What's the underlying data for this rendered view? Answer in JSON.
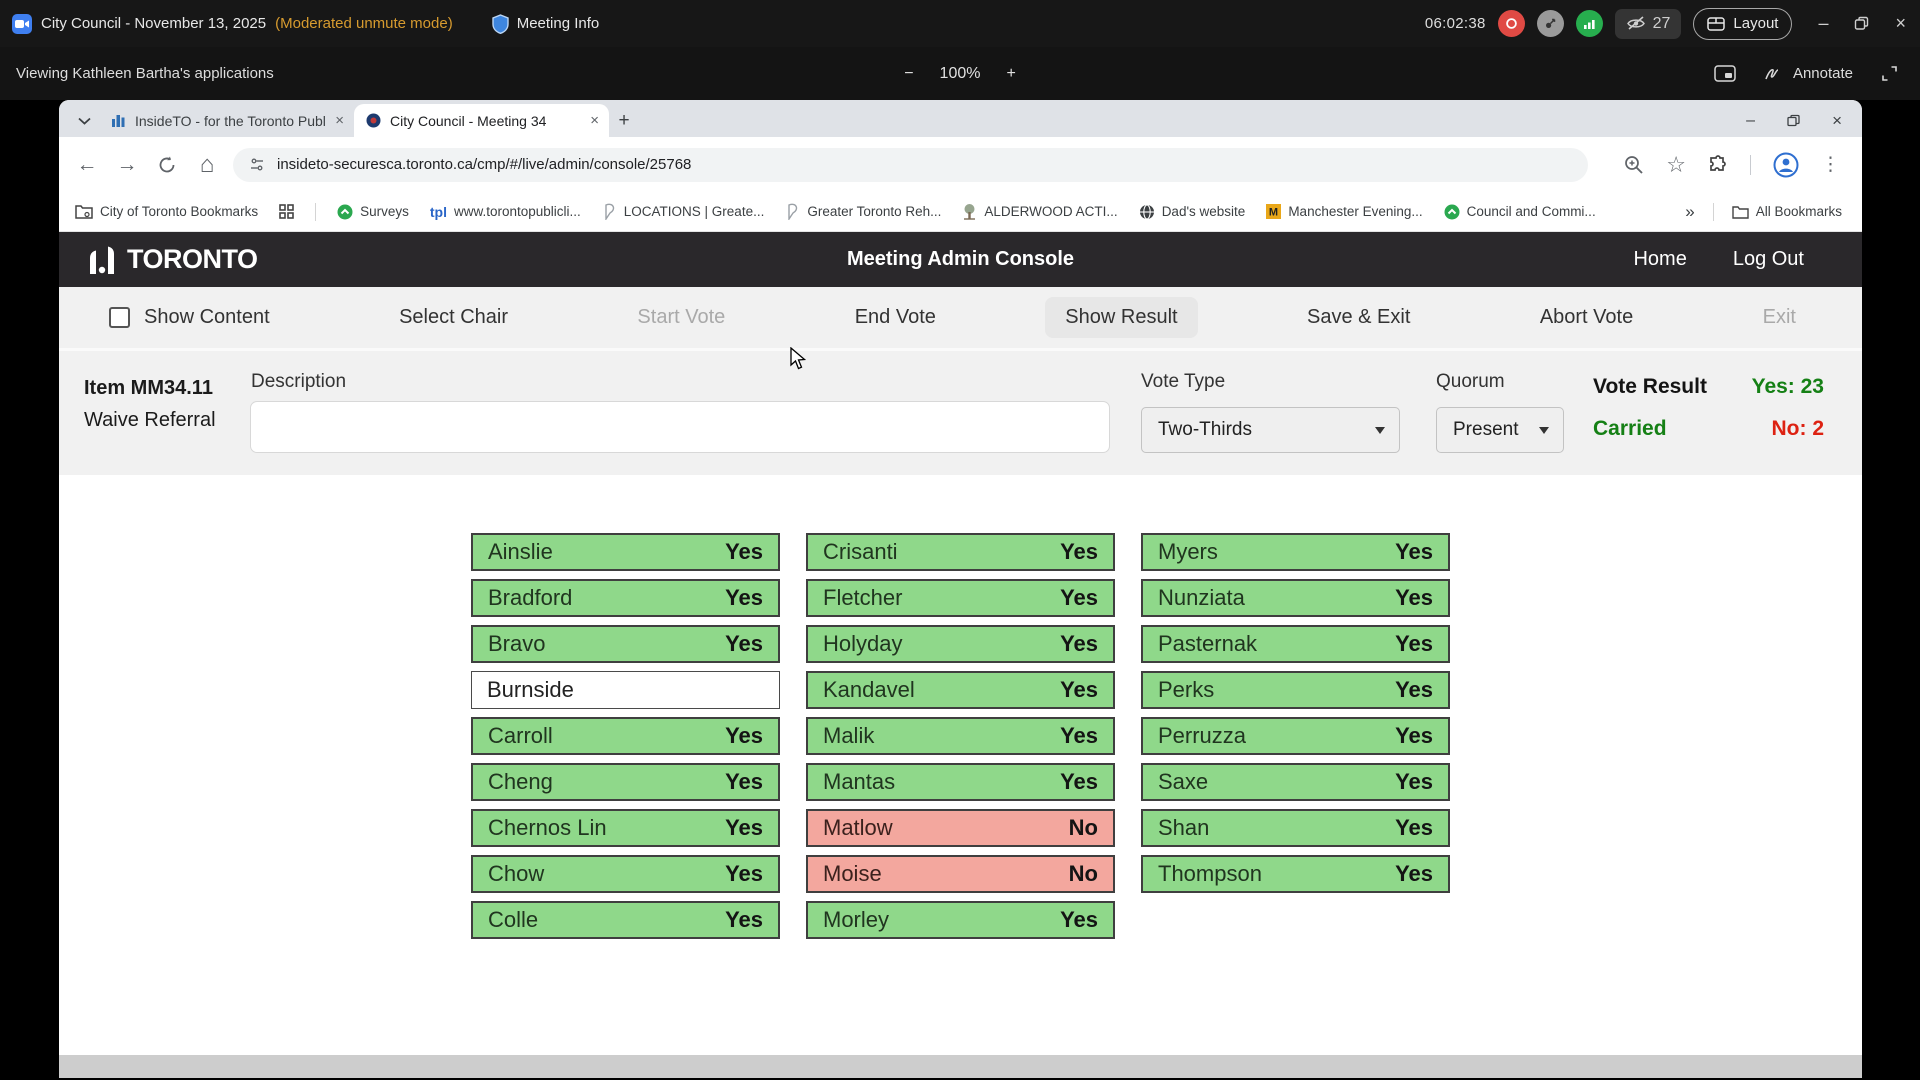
{
  "zoom_bar": {
    "meeting_title": "City Council - November 13, 2025",
    "mode_badge": "(Moderated unmute mode)",
    "meeting_info_label": "Meeting Info",
    "time": "06:02:38",
    "hidden_count": "27",
    "layout_label": "Layout"
  },
  "share_bar": {
    "viewing_label": "Viewing Kathleen Bartha's applications",
    "zoom_level": "100%",
    "annotate_label": "Annotate"
  },
  "icons": {
    "minus": "−",
    "plus": "+",
    "close": "×",
    "minimize": "–",
    "back": "←",
    "forward": "→",
    "home": "⌂",
    "star": "☆",
    "kebab": "⋮",
    "overflow": "»",
    "new_tab": "+",
    "tpl_text": "tpl"
  },
  "browser": {
    "tabs": [
      {
        "title": "InsideTO - for the Toronto Publ",
        "active": false
      },
      {
        "title": "City Council - Meeting 34",
        "active": true
      }
    ],
    "url": "insideto-securesca.toronto.ca/cmp/#/live/admin/console/25768",
    "bookmarks": [
      {
        "icon": "folder-gear",
        "label": "City of Toronto Bookmarks"
      },
      {
        "icon": "apps-grid",
        "label": ""
      },
      {
        "icon": "divider",
        "label": ""
      },
      {
        "icon": "green-circle",
        "label": "Surveys"
      },
      {
        "icon": "tpl",
        "label": "www.torontopublicli..."
      },
      {
        "icon": "ribbon",
        "label": "LOCATIONS | Greate..."
      },
      {
        "icon": "ribbon",
        "label": "Greater Toronto Reh..."
      },
      {
        "icon": "tree",
        "label": "ALDERWOOD ACTI..."
      },
      {
        "icon": "globe",
        "label": "Dad's website"
      },
      {
        "icon": "m-badge",
        "label": "Manchester Evening..."
      },
      {
        "icon": "green-circle",
        "label": "Council and Commi..."
      }
    ],
    "all_bookmarks_label": "All Bookmarks"
  },
  "console": {
    "brand": "Toronto",
    "header_title": "Meeting Admin Console",
    "nav": [
      "Home",
      "Log Out"
    ],
    "toolbar": [
      {
        "label": "Show Content",
        "state": "normal",
        "checkbox": true
      },
      {
        "label": "Select Chair",
        "state": "normal"
      },
      {
        "label": "Start Vote",
        "state": "disabled"
      },
      {
        "label": "End Vote",
        "state": "normal"
      },
      {
        "label": "Show Result",
        "state": "active"
      },
      {
        "label": "Save & Exit",
        "state": "normal"
      },
      {
        "label": "Abort Vote",
        "state": "normal"
      },
      {
        "label": "Exit",
        "state": "disabled"
      }
    ],
    "item": {
      "number": "Item MM34.11",
      "action": "Waive Referral",
      "description_label": "Description",
      "description_value": "",
      "vote_type_label": "Vote Type",
      "vote_type_value": "Two-Thirds",
      "quorum_label": "Quorum",
      "quorum_value": "Present",
      "result_label": "Vote Result",
      "result_value": "Carried",
      "yes_count": "Yes: 23",
      "no_count": "No: 2"
    },
    "votes": {
      "columns": [
        [
          {
            "name": "Ainslie",
            "vote": "Yes"
          },
          {
            "name": "Bradford",
            "vote": "Yes"
          },
          {
            "name": "Bravo",
            "vote": "Yes"
          },
          {
            "name": "Burnside",
            "vote": ""
          },
          {
            "name": "Carroll",
            "vote": "Yes"
          },
          {
            "name": "Cheng",
            "vote": "Yes"
          },
          {
            "name": "Chernos Lin",
            "vote": "Yes"
          },
          {
            "name": "Chow",
            "vote": "Yes"
          },
          {
            "name": "Colle",
            "vote": "Yes"
          }
        ],
        [
          {
            "name": "Crisanti",
            "vote": "Yes"
          },
          {
            "name": "Fletcher",
            "vote": "Yes"
          },
          {
            "name": "Holyday",
            "vote": "Yes"
          },
          {
            "name": "Kandavel",
            "vote": "Yes"
          },
          {
            "name": "Malik",
            "vote": "Yes"
          },
          {
            "name": "Mantas",
            "vote": "Yes"
          },
          {
            "name": "Matlow",
            "vote": "No"
          },
          {
            "name": "Moise",
            "vote": "No"
          },
          {
            "name": "Morley",
            "vote": "Yes"
          }
        ],
        [
          {
            "name": "Myers",
            "vote": "Yes"
          },
          {
            "name": "Nunziata",
            "vote": "Yes"
          },
          {
            "name": "Pasternak",
            "vote": "Yes"
          },
          {
            "name": "Perks",
            "vote": "Yes"
          },
          {
            "name": "Perruzza",
            "vote": "Yes"
          },
          {
            "name": "Saxe",
            "vote": "Yes"
          },
          {
            "name": "Shan",
            "vote": "Yes"
          },
          {
            "name": "Thompson",
            "vote": "Yes"
          }
        ]
      ]
    }
  },
  "colors": {
    "yes_cell": "#8fd88a",
    "no_cell": "#f3a79e",
    "result_green": "#158015",
    "result_red": "#dd2212",
    "header_bg": "#2a282b",
    "mode_orange": "#d79b2f"
  }
}
